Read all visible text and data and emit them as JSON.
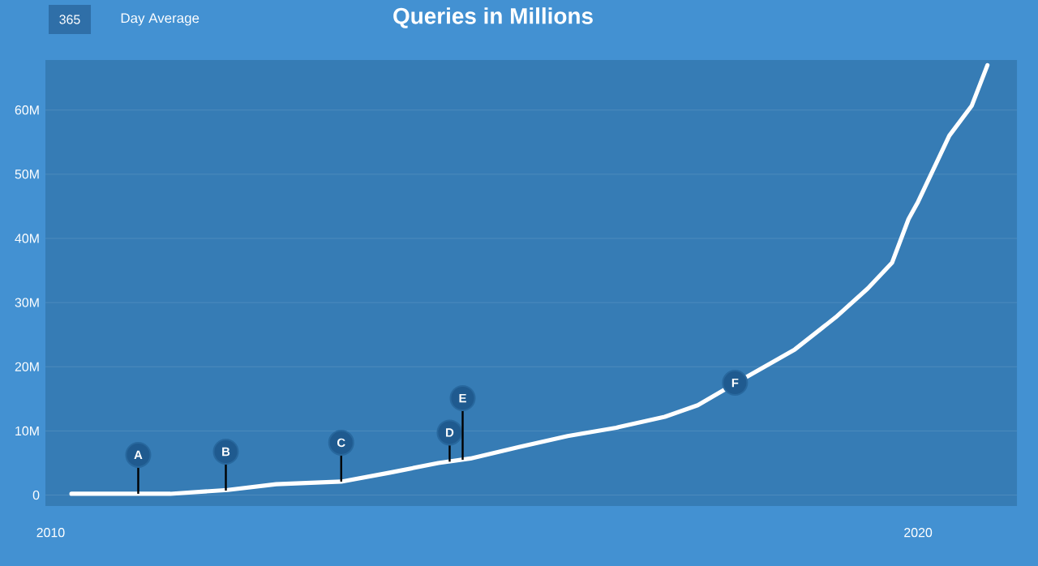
{
  "chart_data": {
    "type": "line",
    "title": "Queries in Millions",
    "annotations": [
      "365",
      "Day Average",
      {
        "text": "A",
        "x": 2011.01,
        "y": 0.2
      },
      {
        "text": "B",
        "x": 2012.02,
        "y": 0.7
      },
      {
        "text": "C",
        "x": 2013.35,
        "y": 2.1
      },
      {
        "text": "D",
        "x": 2014.6,
        "y": 5.2
      },
      {
        "text": "E",
        "x": 2014.75,
        "y": 5.5
      },
      {
        "text": "F",
        "x": 2017.89,
        "y": 17.5
      }
    ],
    "x": [
      2010.24,
      2011.38,
      2012.04,
      2012.6,
      2013.35,
      2013.91,
      2014.47,
      2014.84,
      2015.4,
      2015.96,
      2016.52,
      2017.08,
      2017.46,
      2017.93,
      2018.58,
      2019.05,
      2019.42,
      2019.7,
      2019.89,
      2020.0,
      2020.36,
      2020.62,
      2020.8
    ],
    "values": [
      0.2,
      0.2,
      0.8,
      1.7,
      2.1,
      3.5,
      5,
      5.7,
      7.5,
      9.2,
      10.5,
      12.2,
      14,
      17.7,
      22.7,
      27.7,
      32.2,
      36.2,
      43,
      45.7,
      56,
      60.7,
      67
    ],
    "color": "#ffffff",
    "xlim": [
      2009.94,
      2021.14
    ],
    "ylim": [
      -1.7,
      67.8
    ],
    "xticks": [
      2010,
      2020
    ],
    "yticks": [
      {
        "value": 0,
        "label": "0"
      },
      {
        "value": 10,
        "label": "10M"
      },
      {
        "value": 20,
        "label": "20M"
      },
      {
        "value": 30,
        "label": "30M"
      },
      {
        "value": 40,
        "label": "40M"
      },
      {
        "value": 50,
        "label": "50M"
      },
      {
        "value": 60,
        "label": "60M"
      }
    ],
    "grid": "y",
    "marker": "none",
    "line_style": "solid"
  }
}
